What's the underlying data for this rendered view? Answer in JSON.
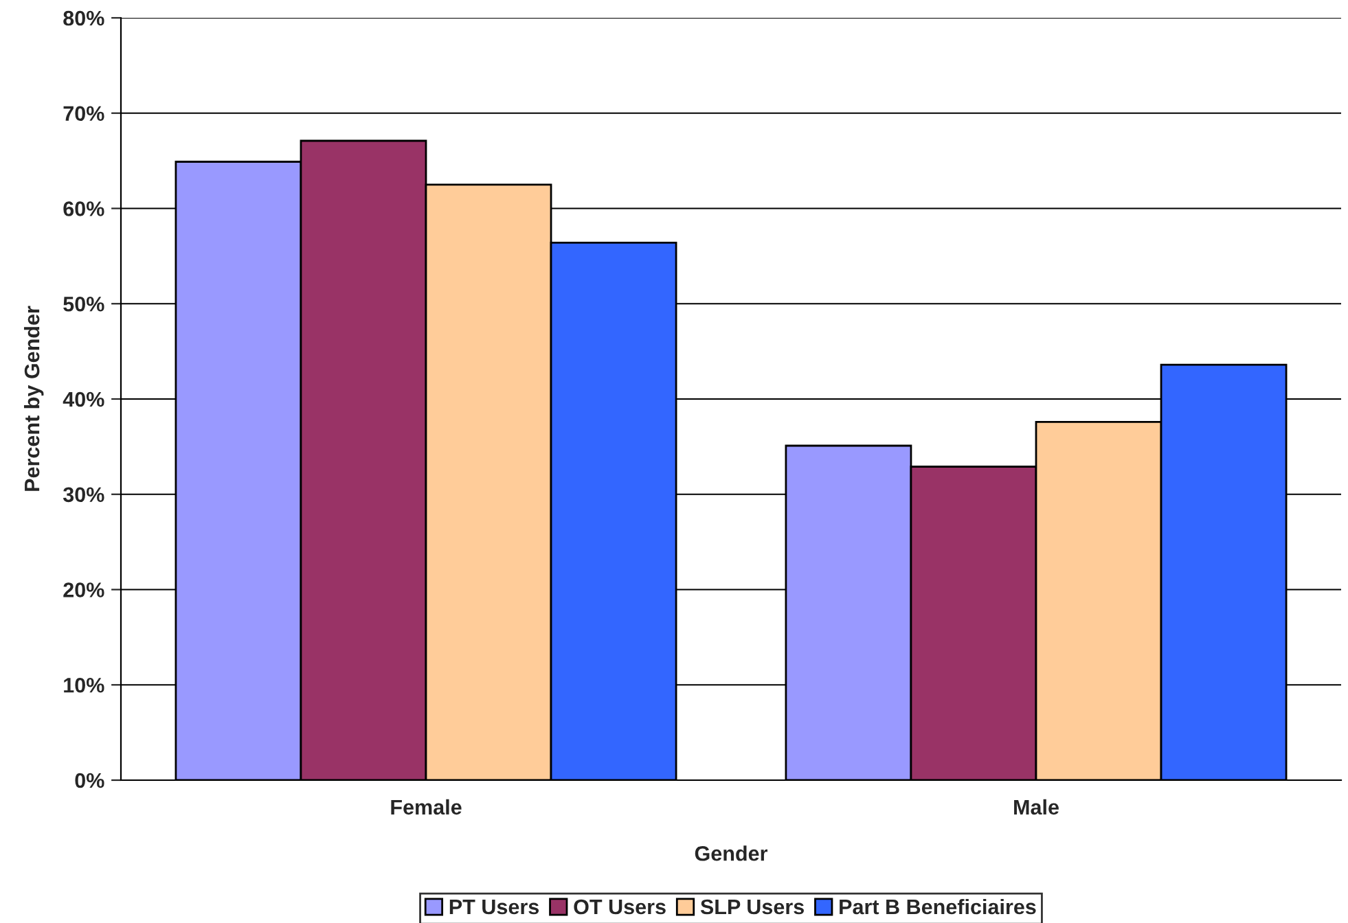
{
  "chart_data": {
    "type": "bar",
    "xlabel": "Gender",
    "ylabel": "Percent by Gender",
    "categories": [
      "Female",
      "Male"
    ],
    "series": [
      {
        "name": "PT Users",
        "color": "#9999ff",
        "values": [
          64.9,
          35.1
        ]
      },
      {
        "name": "OT Users",
        "color": "#993366",
        "values": [
          67.1,
          32.9
        ]
      },
      {
        "name": "SLP Users",
        "color": "#ffcc99",
        "values": [
          62.5,
          37.6
        ]
      },
      {
        "name": "Part B Beneficiaires",
        "color": "#3366ff",
        "values": [
          56.4,
          43.6
        ]
      }
    ],
    "ylim": [
      0,
      80
    ],
    "yticks": [
      {
        "value": 0,
        "label": "0%"
      },
      {
        "value": 10,
        "label": "10%"
      },
      {
        "value": 20,
        "label": "20%"
      },
      {
        "value": 30,
        "label": "30%"
      },
      {
        "value": 40,
        "label": "40%"
      },
      {
        "value": 50,
        "label": "50%"
      },
      {
        "value": 60,
        "label": "60%"
      },
      {
        "value": 70,
        "label": "70%"
      },
      {
        "value": 80,
        "label": "80%"
      }
    ],
    "grid": "y",
    "legend": "bottom"
  }
}
